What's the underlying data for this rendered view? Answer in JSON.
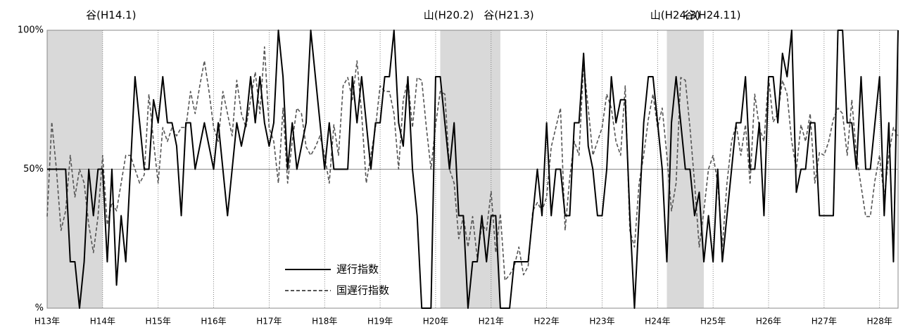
{
  "chart_data": {
    "type": "line",
    "categories": [
      "H13年",
      null,
      null,
      null,
      null,
      null,
      null,
      null,
      null,
      null,
      null,
      null,
      "H14年",
      null,
      null,
      null,
      null,
      null,
      null,
      null,
      null,
      null,
      null,
      null,
      "H15年",
      null,
      null,
      null,
      null,
      null,
      null,
      null,
      null,
      null,
      null,
      null,
      "H16年",
      null,
      null,
      null,
      null,
      null,
      null,
      null,
      null,
      null,
      null,
      null,
      "H17年",
      null,
      null,
      null,
      null,
      null,
      null,
      null,
      null,
      null,
      null,
      null,
      "H18年",
      null,
      null,
      null,
      null,
      null,
      null,
      null,
      null,
      null,
      null,
      null,
      "H19年",
      null,
      null,
      null,
      null,
      null,
      null,
      null,
      null,
      null,
      null,
      null,
      "H20年",
      null,
      null,
      null,
      null,
      null,
      null,
      null,
      null,
      null,
      null,
      null,
      "H21年",
      null,
      null,
      null,
      null,
      null,
      null,
      null,
      null,
      null,
      null,
      null,
      "H22年",
      null,
      null,
      null,
      null,
      null,
      null,
      null,
      null,
      null,
      null,
      null,
      "H23年",
      null,
      null,
      null,
      null,
      null,
      null,
      null,
      null,
      null,
      null,
      null,
      "H24年",
      null,
      null,
      null,
      null,
      null,
      null,
      null,
      null,
      null,
      null,
      null,
      "H25年",
      null,
      null,
      null,
      null,
      null,
      null,
      null,
      null,
      null,
      null,
      null,
      "H26年",
      null,
      null,
      null,
      null,
      null,
      null,
      null,
      null,
      null,
      null,
      null,
      "H27年",
      null,
      null,
      null,
      null,
      null,
      null,
      null,
      null,
      null,
      null,
      null,
      "H28年",
      null,
      null,
      null,
      null
    ],
    "series": [
      {
        "name": "遅行指数",
        "color": "#000000",
        "line_style": "solid",
        "values": [
          50,
          50,
          50,
          50,
          50,
          16.7,
          16.7,
          0,
          16.7,
          50,
          33.3,
          50,
          50,
          16.7,
          50,
          8.3,
          33.3,
          16.7,
          50,
          83.3,
          66.7,
          50,
          50,
          75,
          66.7,
          83.3,
          66.7,
          66.7,
          58.3,
          33.3,
          66.7,
          66.7,
          50,
          58.3,
          66.7,
          58.3,
          50,
          66.7,
          50,
          33.3,
          50,
          66.7,
          58.3,
          66.7,
          83.3,
          66.7,
          83.3,
          66.7,
          58.3,
          66.7,
          100,
          83.3,
          50,
          66.7,
          50,
          58.3,
          66.7,
          100,
          83.3,
          66.7,
          50,
          66.7,
          50,
          50,
          50,
          50,
          83.3,
          66.7,
          83.3,
          66.7,
          50,
          66.7,
          66.7,
          83.3,
          83.3,
          100,
          66.7,
          58.3,
          83.3,
          50,
          33.3,
          0,
          0,
          0,
          83.3,
          83.3,
          66.7,
          50,
          66.7,
          33.3,
          33.3,
          0,
          16.7,
          16.7,
          33.3,
          16.7,
          33.3,
          33.3,
          0,
          0,
          0,
          16.7,
          16.7,
          16.7,
          16.7,
          33.3,
          50,
          33.3,
          66.7,
          33.3,
          50,
          50,
          33.3,
          33.3,
          66.7,
          66.7,
          91.7,
          58.3,
          50,
          33.3,
          33.3,
          50,
          83.3,
          66.7,
          75,
          75,
          33.3,
          0,
          33.3,
          66.7,
          83.3,
          83.3,
          66.7,
          50,
          16.7,
          66.7,
          83.3,
          66.7,
          50,
          50,
          33.3,
          41.7,
          16.7,
          33.3,
          16.7,
          50,
          16.7,
          33.3,
          50,
          66.7,
          66.7,
          83.3,
          50,
          50,
          66.7,
          33.3,
          83.3,
          83.3,
          66.7,
          91.7,
          83.3,
          100,
          41.7,
          50,
          50,
          66.7,
          66.7,
          33.3,
          33.3,
          33.3,
          33.3,
          100,
          100,
          66.7,
          66.7,
          50,
          83.3,
          50,
          50,
          66.7,
          83.3,
          33.3,
          66.7,
          16.7,
          100
        ]
      },
      {
        "name": "国遅行指数",
        "color": "#555555",
        "line_style": "dashed",
        "values": [
          33,
          67,
          50,
          28,
          35,
          55,
          40,
          50,
          45,
          30,
          20,
          33,
          55,
          30,
          38,
          35,
          45,
          55,
          55,
          50,
          45,
          48,
          77,
          60,
          45,
          65,
          60,
          65,
          62,
          65,
          65,
          78,
          70,
          80,
          89,
          78,
          65,
          60,
          78,
          70,
          62,
          82,
          70,
          65,
          75,
          85,
          70,
          94,
          65,
          60,
          45,
          72,
          45,
          60,
          72,
          70,
          58,
          55,
          58,
          62,
          55,
          45,
          66,
          55,
          80,
          83,
          75,
          89,
          70,
          45,
          55,
          65,
          80,
          78,
          78,
          70,
          50,
          75,
          82,
          65,
          83,
          82,
          65,
          50,
          66,
          78,
          77,
          50,
          45,
          25,
          33,
          22,
          33,
          18,
          30,
          28,
          42,
          20,
          34,
          10,
          12,
          15,
          22,
          12,
          15,
          35,
          38,
          35,
          40,
          58,
          65,
          72,
          28,
          47,
          60,
          55,
          88,
          72,
          55,
          60,
          65,
          77,
          72,
          60,
          55,
          80,
          28,
          22,
          45,
          55,
          68,
          77,
          65,
          72,
          55,
          35,
          45,
          83,
          82,
          65,
          45,
          22,
          35,
          50,
          55,
          45,
          22,
          45,
          60,
          66,
          55,
          66,
          45,
          77,
          65,
          60,
          83,
          67,
          70,
          82,
          77,
          60,
          50,
          66,
          60,
          70,
          45,
          56,
          55,
          60,
          68,
          72,
          70,
          55,
          75,
          55,
          44,
          33,
          33,
          46,
          55,
          40,
          55,
          65,
          62
        ]
      }
    ],
    "ylim": [
      0,
      100
    ],
    "yticks": [
      {
        "value": 0,
        "label": "%"
      },
      {
        "value": 50,
        "label": "50%"
      },
      {
        "value": 100,
        "label": "100%"
      }
    ],
    "shaded": [
      {
        "start": 0,
        "end": 12
      },
      {
        "start": 85,
        "end": 98
      },
      {
        "start": 134,
        "end": 142
      }
    ],
    "annotations": [
      {
        "text": "谷(H14.1)",
        "at": 12
      },
      {
        "text": "山(H20.2)",
        "at": 85
      },
      {
        "text": "谷(H21.3)",
        "at": 98
      },
      {
        "text": "山(H24.3)",
        "at": 134
      },
      {
        "text": "谷(H24.11)",
        "at": 142
      }
    ],
    "grid": true
  }
}
